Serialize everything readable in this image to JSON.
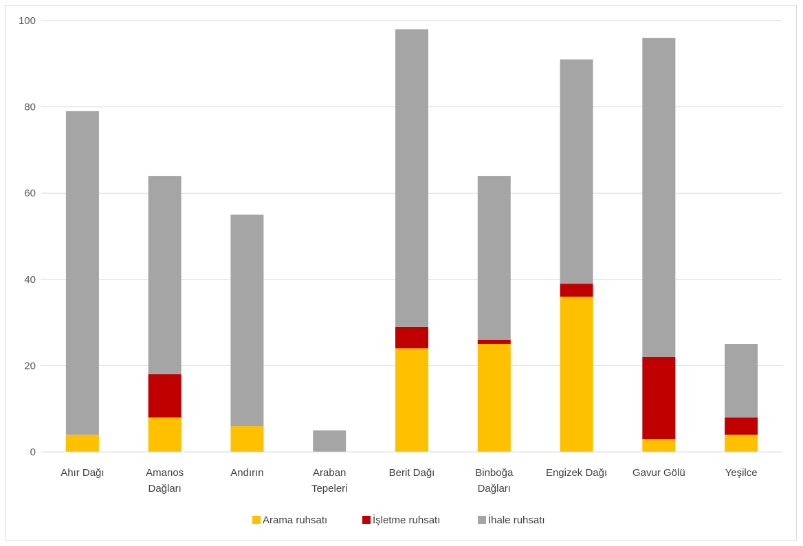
{
  "chart_data": {
    "type": "bar",
    "stacked": true,
    "title": "",
    "xlabel": "",
    "ylabel": "",
    "ylim": [
      0,
      100
    ],
    "yticks": [
      0,
      20,
      40,
      60,
      80,
      100
    ],
    "grid": true,
    "legend_position": "bottom",
    "categories": [
      [
        "Ahır Dağı"
      ],
      [
        "Amanos",
        "Dağları"
      ],
      [
        "Andırın"
      ],
      [
        "Araban",
        "Tepeleri"
      ],
      [
        "Berit Dağı"
      ],
      [
        "Binboğa",
        "Dağları"
      ],
      [
        "Engizek Dağı"
      ],
      [
        "Gavur Gölü"
      ],
      [
        "Yeşilce"
      ]
    ],
    "series": [
      {
        "name": "Arama ruhsatı",
        "color": "#FFC000",
        "values": [
          4,
          8,
          6,
          0,
          24,
          25,
          36,
          3,
          4
        ]
      },
      {
        "name": "İşletme ruhsatı",
        "color": "#C00000",
        "values": [
          0,
          10,
          0,
          0,
          5,
          1,
          3,
          19,
          4
        ]
      },
      {
        "name": "İhale ruhsatı",
        "color": "#A5A5A5",
        "values": [
          75,
          46,
          49,
          5,
          69,
          38,
          52,
          74,
          17
        ]
      }
    ]
  }
}
